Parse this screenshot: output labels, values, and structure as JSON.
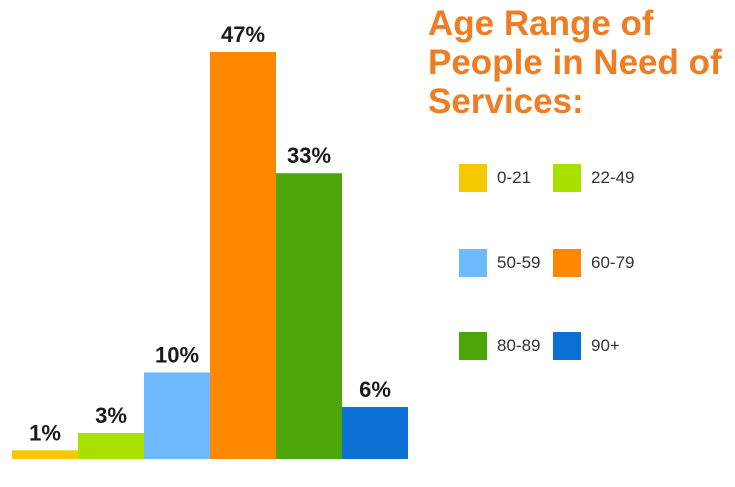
{
  "chart_data": {
    "type": "bar",
    "title": "Age Range of People in Need of Services:",
    "categories": [
      "0-21",
      "22-49",
      "50-59",
      "60-79",
      "80-89",
      "90+"
    ],
    "values": [
      1,
      3,
      10,
      47,
      33,
      6
    ],
    "value_labels": [
      "1%",
      "3%",
      "10%",
      "47%",
      "33%",
      "6%"
    ],
    "colors": [
      "#f5c800",
      "#a8e000",
      "#6fbaff",
      "#ff8800",
      "#4ca60a",
      "#0b6fd4"
    ],
    "ylim": [
      0,
      47
    ],
    "legend": {
      "position": "right"
    },
    "grid": false
  }
}
